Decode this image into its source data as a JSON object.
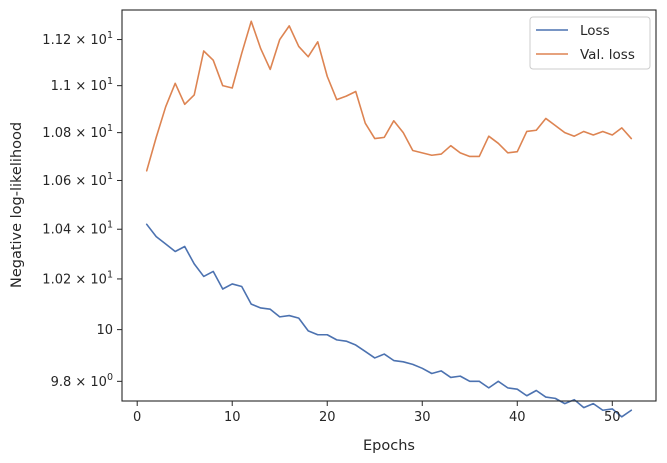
{
  "chart_data": {
    "type": "line",
    "xlabel": "Epochs",
    "ylabel": "Negative log-likelihood",
    "yscale": "log",
    "grid": false,
    "legend_position": "top-right",
    "xlim": [
      -1.6,
      54.6
    ],
    "ylim": [
      9.725,
      11.33
    ],
    "x_ticks": [
      0,
      10,
      20,
      30,
      40,
      50
    ],
    "x_tick_labels": [
      "0",
      "10",
      "20",
      "30",
      "40",
      "50"
    ],
    "y_ticks": [
      9.8,
      10.0,
      10.2,
      10.4,
      10.6,
      10.8,
      11.0,
      11.2
    ],
    "y_tick_labels": [
      {
        "base": "9.8",
        "exp": "0"
      },
      {
        "base": "10",
        "exp": ""
      },
      {
        "base": "1.02",
        "exp": "1"
      },
      {
        "base": "1.04",
        "exp": "1"
      },
      {
        "base": "1.06",
        "exp": "1"
      },
      {
        "base": "1.08",
        "exp": "1"
      },
      {
        "base": "1.1",
        "exp": "1"
      },
      {
        "base": "1.12",
        "exp": "1"
      }
    ],
    "x": [
      1,
      2,
      3,
      4,
      5,
      6,
      7,
      8,
      9,
      10,
      11,
      12,
      13,
      14,
      15,
      16,
      17,
      18,
      19,
      20,
      21,
      22,
      23,
      24,
      25,
      26,
      27,
      28,
      29,
      30,
      31,
      32,
      33,
      34,
      35,
      36,
      37,
      38,
      39,
      40,
      41,
      42,
      43,
      44,
      45,
      46,
      47,
      48,
      49,
      50,
      51,
      52
    ],
    "series": [
      {
        "name": "Loss",
        "color": "#4c72b0",
        "values": [
          10.42,
          10.37,
          10.34,
          10.31,
          10.33,
          10.26,
          10.21,
          10.23,
          10.16,
          10.18,
          10.17,
          10.1,
          10.085,
          10.08,
          10.05,
          10.055,
          10.045,
          9.995,
          9.98,
          9.98,
          9.96,
          9.955,
          9.94,
          9.915,
          9.89,
          9.905,
          9.88,
          9.875,
          9.865,
          9.85,
          9.83,
          9.84,
          9.815,
          9.82,
          9.8,
          9.8,
          9.775,
          9.8,
          9.775,
          9.77,
          9.745,
          9.765,
          9.74,
          9.735,
          9.715,
          9.73,
          9.7,
          9.715,
          9.69,
          9.695,
          9.665,
          9.69
        ]
      },
      {
        "name": "Val. loss",
        "color": "#dd8452",
        "values": [
          10.64,
          10.78,
          10.91,
          11.01,
          10.92,
          10.96,
          11.15,
          11.11,
          11.0,
          10.99,
          11.14,
          11.28,
          11.16,
          11.07,
          11.2,
          11.26,
          11.17,
          11.125,
          11.19,
          11.04,
          10.94,
          10.955,
          10.975,
          10.84,
          10.775,
          10.78,
          10.85,
          10.8,
          10.725,
          10.715,
          10.705,
          10.71,
          10.745,
          10.715,
          10.7,
          10.7,
          10.785,
          10.755,
          10.715,
          10.72,
          10.805,
          10.81,
          10.86,
          10.83,
          10.8,
          10.785,
          10.805,
          10.79,
          10.805,
          10.79,
          10.82,
          10.775
        ]
      }
    ]
  }
}
